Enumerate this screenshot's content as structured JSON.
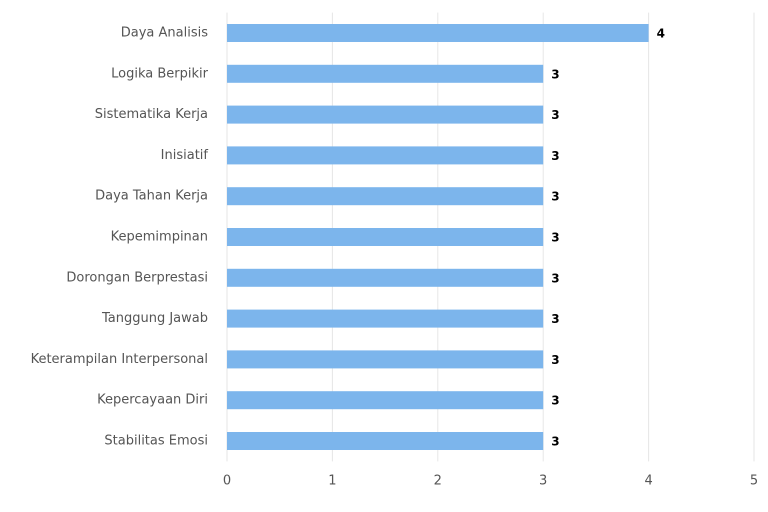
{
  "chart_data": {
    "type": "bar",
    "orientation": "horizontal",
    "categories": [
      "Daya Analisis",
      "Logika Berpikir",
      "Sistematika Kerja",
      "Inisiatif",
      "Daya Tahan Kerja",
      "Kepemimpinan",
      "Dorongan Berprestasi",
      "Tanggung Jawab",
      "Keterampilan Interpersonal",
      "Kepercayaan Diri",
      "Stabilitas Emosi"
    ],
    "values": [
      4,
      3,
      3,
      3,
      3,
      3,
      3,
      3,
      3,
      3,
      3
    ],
    "color": "#7cb5ec",
    "xlim": [
      0,
      5
    ],
    "xticks": [
      0,
      1,
      2,
      3,
      4,
      5
    ],
    "grid": true
  }
}
